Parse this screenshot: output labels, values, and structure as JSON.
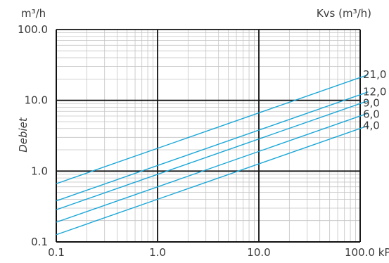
{
  "chart_data": {
    "type": "line",
    "x_scale": "log",
    "y_scale": "log",
    "xlim": [
      0.1,
      120
    ],
    "ylim": [
      0.1,
      100
    ],
    "x_ticks": [
      {
        "value": 0.1,
        "label": "0.1"
      },
      {
        "value": 1,
        "label": "1.0"
      },
      {
        "value": 10,
        "label": "10.0"
      },
      {
        "value": 100,
        "label": "100.0 kPa"
      }
    ],
    "y_ticks": [
      {
        "value": 0.1,
        "label": "0.1"
      },
      {
        "value": 1,
        "label": "1.0"
      },
      {
        "value": 10,
        "label": "10.0"
      },
      {
        "value": 100,
        "label": "100.0"
      }
    ],
    "y_unit": "m³/h",
    "ylabel": "Debiet",
    "series_unit_label": "Kvs (m³/h)",
    "series_color": "#1aa7d8",
    "grid": true,
    "series": [
      {
        "name": "21,0",
        "kvs": 21.0
      },
      {
        "name": "12,0",
        "kvs": 12.0
      },
      {
        "name": "9,0",
        "kvs": 9.0
      },
      {
        "name": "6,0",
        "kvs": 6.0
      },
      {
        "name": "4,0",
        "kvs": 4.0
      }
    ]
  }
}
